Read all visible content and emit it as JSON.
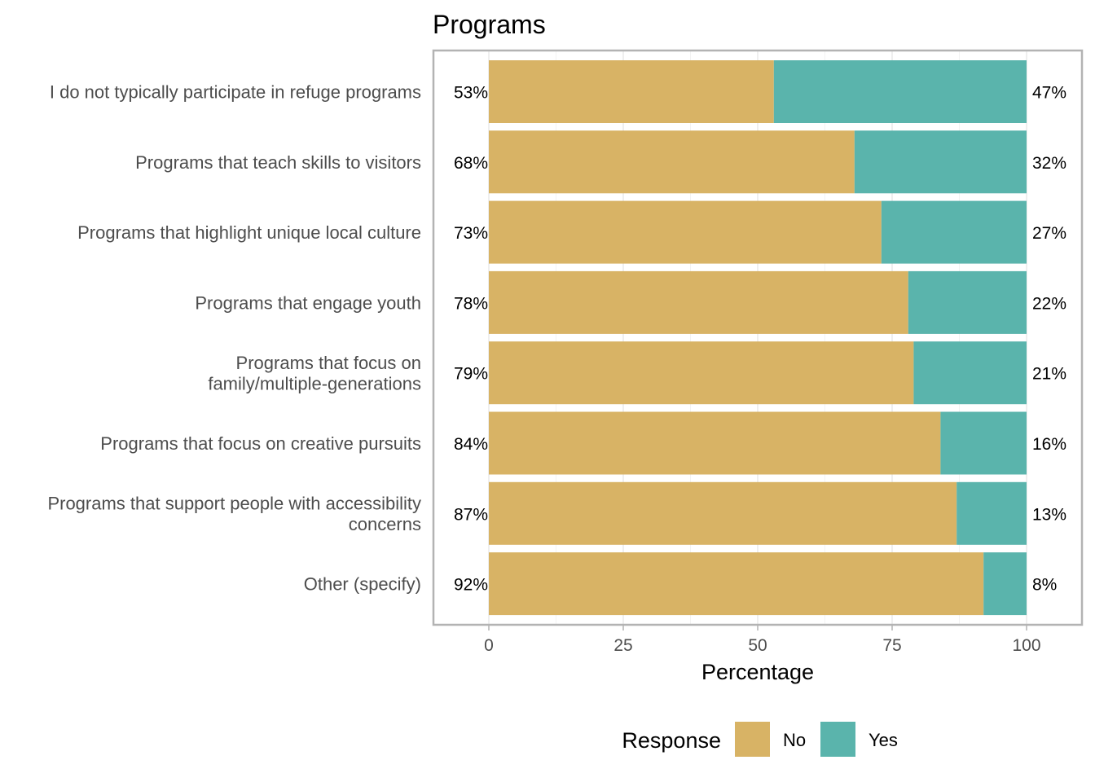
{
  "chart_data": {
    "type": "bar",
    "orientation": "horizontal",
    "stacked": true,
    "title": "Programs",
    "xlabel": "Percentage",
    "ylabel": "",
    "xlim": [
      0,
      100
    ],
    "xticks": [
      0,
      25,
      50,
      75,
      100
    ],
    "grid": true,
    "legend": {
      "title": "Response",
      "position": "bottom"
    },
    "categories": [
      [
        "I do not typically participate in refuge programs"
      ],
      [
        "Programs that teach skills to visitors"
      ],
      [
        "Programs that highlight unique local culture"
      ],
      [
        "Programs that engage youth"
      ],
      [
        "Programs that focus on",
        "family/multiple-generations"
      ],
      [
        "Programs that focus on creative pursuits"
      ],
      [
        "Programs that support people with accessibility",
        "concerns"
      ],
      [
        "Other (specify)"
      ]
    ],
    "series": [
      {
        "name": "No",
        "color": "#d8b365",
        "values": [
          53,
          68,
          73,
          78,
          79,
          84,
          87,
          92
        ],
        "labels": [
          "53%",
          "68%",
          "73%",
          "78%",
          "79%",
          "84%",
          "87%",
          "92%"
        ]
      },
      {
        "name": "Yes",
        "color": "#5ab4ac",
        "values": [
          47,
          32,
          27,
          22,
          21,
          16,
          13,
          8
        ],
        "labels": [
          "47%",
          "32%",
          "27%",
          "22%",
          "21%",
          "16%",
          "13%",
          "8%"
        ]
      }
    ]
  }
}
